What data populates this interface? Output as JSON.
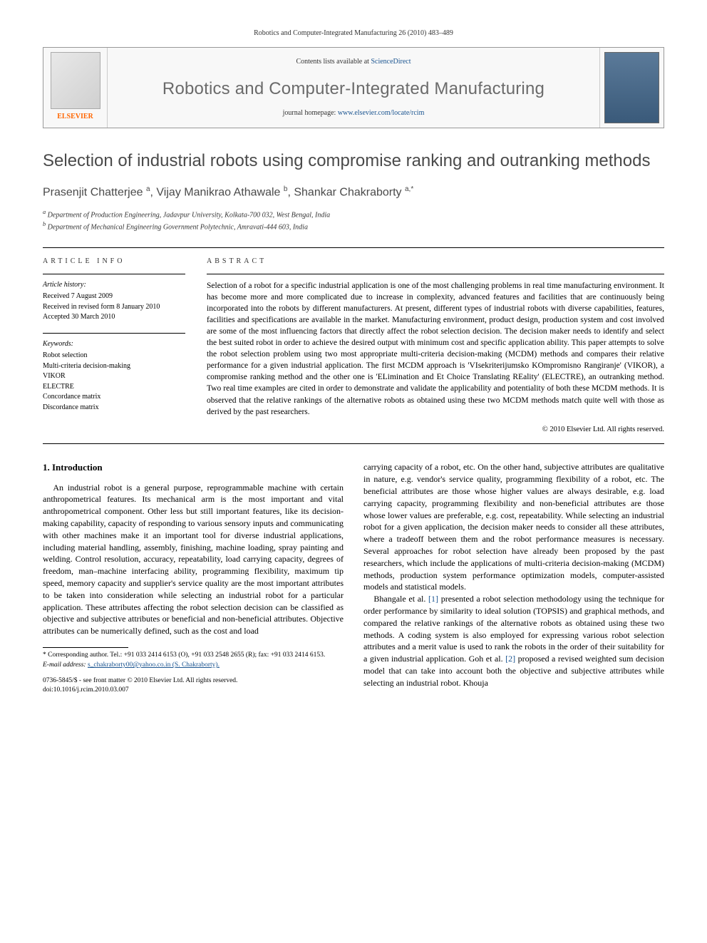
{
  "header": {
    "citation": "Robotics and Computer-Integrated Manufacturing 26 (2010) 483–489",
    "contents_prefix": "Contents lists available at ",
    "contents_link": "ScienceDirect",
    "journal_name": "Robotics and Computer-Integrated Manufacturing",
    "homepage_prefix": "journal homepage: ",
    "homepage_link": "www.elsevier.com/locate/rcim",
    "publisher_logo_text": "ELSEVIER"
  },
  "article": {
    "title": "Selection of industrial robots using compromise ranking and outranking methods",
    "authors_html": "Prasenjit Chatterjee <sup>a</sup>, Vijay Manikrao Athawale <sup>b</sup>, Shankar Chakraborty <sup>a,*</sup>",
    "affiliations": {
      "a": "Department of Production Engineering, Jadavpur University, Kolkata-700 032, West Bengal, India",
      "b": "Department of Mechanical Engineering Government Polytechnic, Amravati-444 603, India"
    }
  },
  "info": {
    "label": "ARTICLE INFO",
    "history_hdr": "Article history:",
    "history": {
      "received": "Received 7 August 2009",
      "revised": "Received in revised form 8 January 2010",
      "accepted": "Accepted 30 March 2010"
    },
    "keywords_hdr": "Keywords:",
    "keywords": [
      "Robot selection",
      "Multi-criteria decision-making",
      "VIKOR",
      "ELECTRE",
      "Concordance matrix",
      "Discordance matrix"
    ]
  },
  "abstract": {
    "label": "ABSTRACT",
    "text": "Selection of a robot for a specific industrial application is one of the most challenging problems in real time manufacturing environment. It has become more and more complicated due to increase in complexity, advanced features and facilities that are continuously being incorporated into the robots by different manufacturers. At present, different types of industrial robots with diverse capabilities, features, facilities and specifications are available in the market. Manufacturing environment, product design, production system and cost involved are some of the most influencing factors that directly affect the robot selection decision. The decision maker needs to identify and select the best suited robot in order to achieve the desired output with minimum cost and specific application ability. This paper attempts to solve the robot selection problem using two most appropriate multi-criteria decision-making (MCDM) methods and compares their relative performance for a given industrial application. The first MCDM approach is 'VIsekriterijumsko KOmpromisno Rangiranje' (VIKOR), a compromise ranking method and the other one is 'ELimination and Et Choice Translating REality' (ELECTRE), an outranking method. Two real time examples are cited in order to demonstrate and validate the applicability and potentiality of both these MCDM methods. It is observed that the relative rankings of the alternative robots as obtained using these two MCDM methods match quite well with those as derived by the past researchers.",
    "copyright": "© 2010 Elsevier Ltd. All rights reserved."
  },
  "body": {
    "section_title": "1. Introduction",
    "para1": "An industrial robot is a general purpose, reprogrammable machine with certain anthropometrical features. Its mechanical arm is the most important and vital anthropometrical component. Other less but still important features, like its decision-making capability, capacity of responding to various sensory inputs and communicating with other machines make it an important tool for diverse industrial applications, including material handling, assembly, finishing, machine loading, spray painting and welding. Control resolution, accuracy, repeatability, load carrying capacity, degrees of freedom, man–machine interfacing ability, programming flexibility, maximum tip speed, memory capacity and supplier's service quality are the most important attributes to be taken into consideration while selecting an industrial robot for a particular application. These attributes affecting the robot selection decision can be classified as objective and subjective attributes or beneficial and non-beneficial attributes. Objective attributes can be numerically defined, such as the cost and load",
    "para1b": "carrying capacity of a robot, etc. On the other hand, subjective attributes are qualitative in nature, e.g. vendor's service quality, programming flexibility of a robot, etc. The beneficial attributes are those whose higher values are always desirable, e.g. load carrying capacity, programming flexibility and non-beneficial attributes are those whose lower values are preferable, e.g. cost, repeatability. While selecting an industrial robot for a given application, the decision maker needs to consider all these attributes, where a tradeoff between them and the robot performance measures is necessary. Several approaches for robot selection have already been proposed by the past researchers, which include the applications of multi-criteria decision-making (MCDM) methods, production system performance optimization models, computer-assisted models and statistical models.",
    "para2_pre": "Bhangale et al. ",
    "ref1": "[1]",
    "para2_mid": " presented a robot selection methodology using the technique for order performance by similarity to ideal solution (TOPSIS) and graphical methods, and compared the relative rankings of the alternative robots as obtained using these two methods. A coding system is also employed for expressing various robot selection attributes and a merit value is used to rank the robots in the order of their suitability for a given industrial application. Goh et al. ",
    "ref2": "[2]",
    "para2_post": " proposed a revised weighted sum decision model that can take into account both the objective and subjective attributes while selecting an industrial robot. Khouja"
  },
  "footnotes": {
    "corr": "* Corresponding author. Tel.: +91 033 2414 6153 (O), +91 033 2548 2655 (R); fax: +91 033 2414 6153.",
    "email_label": "E-mail address:",
    "email": "s_chakraborty00@yahoo.co.in (S. Chakraborty).",
    "front_matter": "0736-5845/$ - see front matter © 2010 Elsevier Ltd. All rights reserved.",
    "doi": "doi:10.1016/j.rcim.2010.03.007"
  },
  "colors": {
    "link": "#1a5490",
    "title_gray": "#4a4a4a",
    "elsevier_orange": "#ff6600"
  }
}
